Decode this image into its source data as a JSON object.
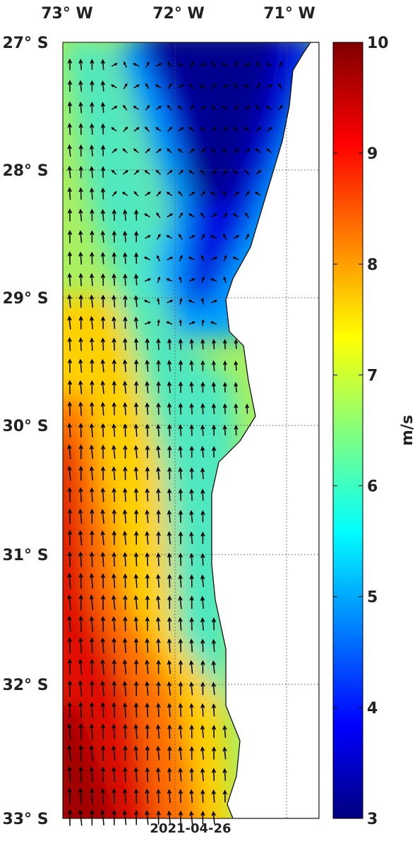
{
  "map": {
    "lon_labels": [
      "73° W",
      "72° W",
      "71° W"
    ],
    "lat_labels": [
      "27° S",
      "28° S",
      "29° S",
      "30° S",
      "31° S",
      "32° S",
      "33° S"
    ],
    "date": "2021-04-26"
  },
  "colorbar": {
    "label": "m/s",
    "range": [
      3,
      10
    ],
    "ticks": [
      3,
      4,
      5,
      6,
      7,
      8,
      9,
      10
    ]
  }
}
